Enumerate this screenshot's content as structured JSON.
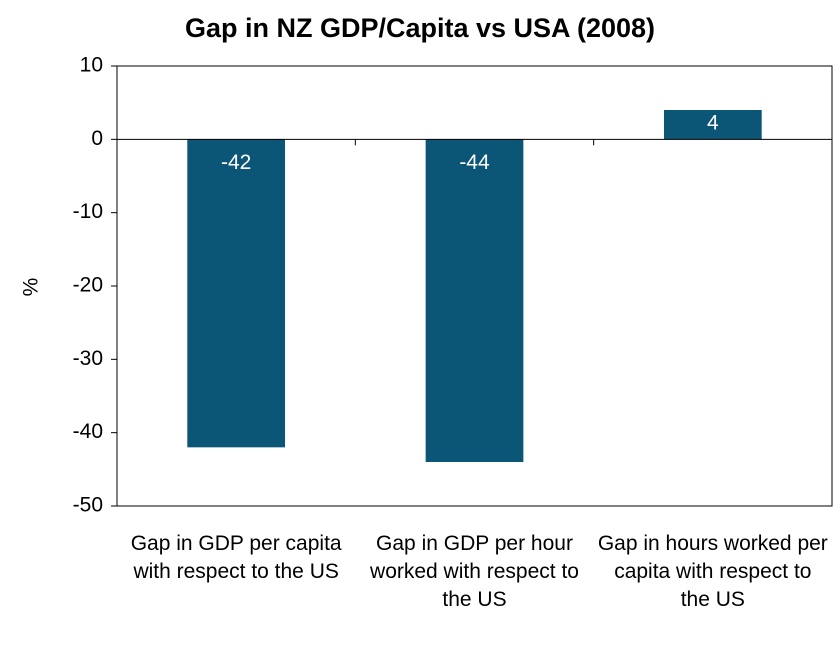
{
  "chart_data": {
    "type": "bar",
    "title": "Gap in NZ GDP/Capita vs USA (2008)",
    "y_label": "%",
    "categories": [
      "Gap in GDP per capita with respect to the US",
      "Gap in GDP per hour worked with respect to the US",
      "Gap in hours worked per capita with respect to the US"
    ],
    "values": [
      -42,
      -44,
      4
    ],
    "color": "#0b5577",
    "ylim": [
      -50,
      10
    ],
    "yticks": [
      -50,
      -40,
      -30,
      -20,
      -10,
      0,
      10
    ],
    "grid": false
  }
}
